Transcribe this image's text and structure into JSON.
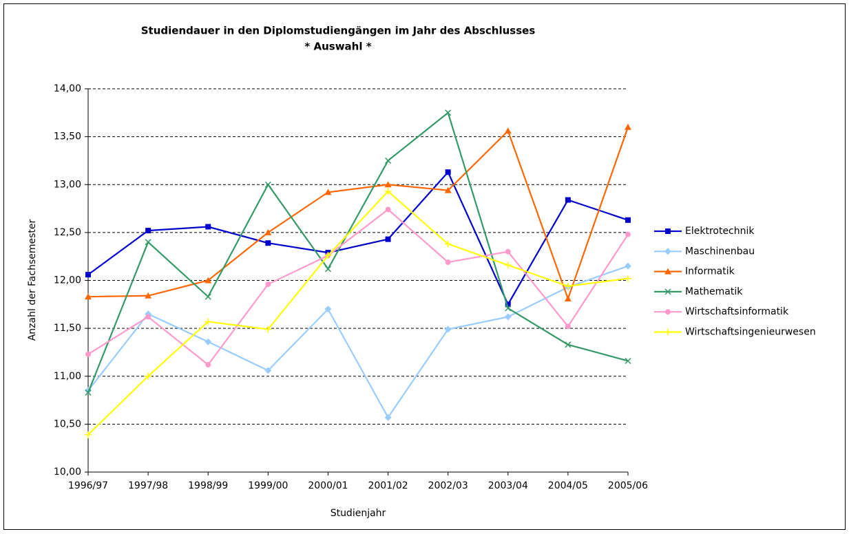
{
  "chart_data": {
    "type": "line",
    "title": "Studiendauer in den Diplomstudiengängen im Jahr des Abschlusses",
    "subtitle": "* Auswahl *",
    "x_label": "Studienjahr",
    "y_label": "Anzahl der Fachsemester",
    "categories": [
      "1996/97",
      "1997/98",
      "1998/99",
      "1999/00",
      "2000/01",
      "2001/02",
      "2002/03",
      "2003/04",
      "2004/05",
      "2005/06"
    ],
    "series": [
      {
        "name": "Elektrotechnik",
        "color": "#0000cc",
        "marker": "square",
        "values": [
          12.06,
          12.52,
          12.56,
          12.39,
          12.29,
          12.43,
          13.13,
          11.75,
          12.84,
          12.63
        ]
      },
      {
        "name": "Maschinenbau",
        "color": "#99ccff",
        "marker": "diamond",
        "values": [
          10.85,
          11.65,
          11.36,
          11.06,
          11.7,
          10.57,
          11.49,
          11.62,
          11.93,
          12.15
        ]
      },
      {
        "name": "Informatik",
        "color": "#ff6600",
        "marker": "triangle",
        "values": [
          11.83,
          11.84,
          12.0,
          12.5,
          12.92,
          13.0,
          12.94,
          13.56,
          11.81,
          13.6
        ]
      },
      {
        "name": "Mathematik",
        "color": "#339966",
        "marker": "x",
        "values": [
          10.83,
          12.4,
          11.83,
          13.0,
          12.12,
          13.25,
          13.75,
          11.71,
          11.33,
          11.16
        ]
      },
      {
        "name": "Wirtschaftsinformatik",
        "color": "#ff99cc",
        "marker": "circle",
        "values": [
          11.23,
          11.62,
          11.12,
          11.96,
          12.26,
          12.74,
          12.19,
          12.3,
          11.52,
          12.48
        ]
      },
      {
        "name": "Wirtschaftsingenieurwesen",
        "color": "#ffff00",
        "marker": "plus",
        "values": [
          10.39,
          11.0,
          11.57,
          11.49,
          12.26,
          12.93,
          12.38,
          12.16,
          11.94,
          12.02
        ]
      }
    ],
    "ylim": [
      10,
      14
    ],
    "yticks": [
      {
        "value": 10,
        "label": "10,00"
      },
      {
        "value": 10.5,
        "label": "10,50"
      },
      {
        "value": 11,
        "label": "11,00"
      },
      {
        "value": 11.5,
        "label": "11,50"
      },
      {
        "value": 12,
        "label": "12,00"
      },
      {
        "value": 12.5,
        "label": "12,50"
      },
      {
        "value": 13,
        "label": "13,00"
      },
      {
        "value": 13.5,
        "label": "13,50"
      },
      {
        "value": 14,
        "label": "14,00"
      }
    ],
    "grid": true,
    "legend": "right"
  }
}
